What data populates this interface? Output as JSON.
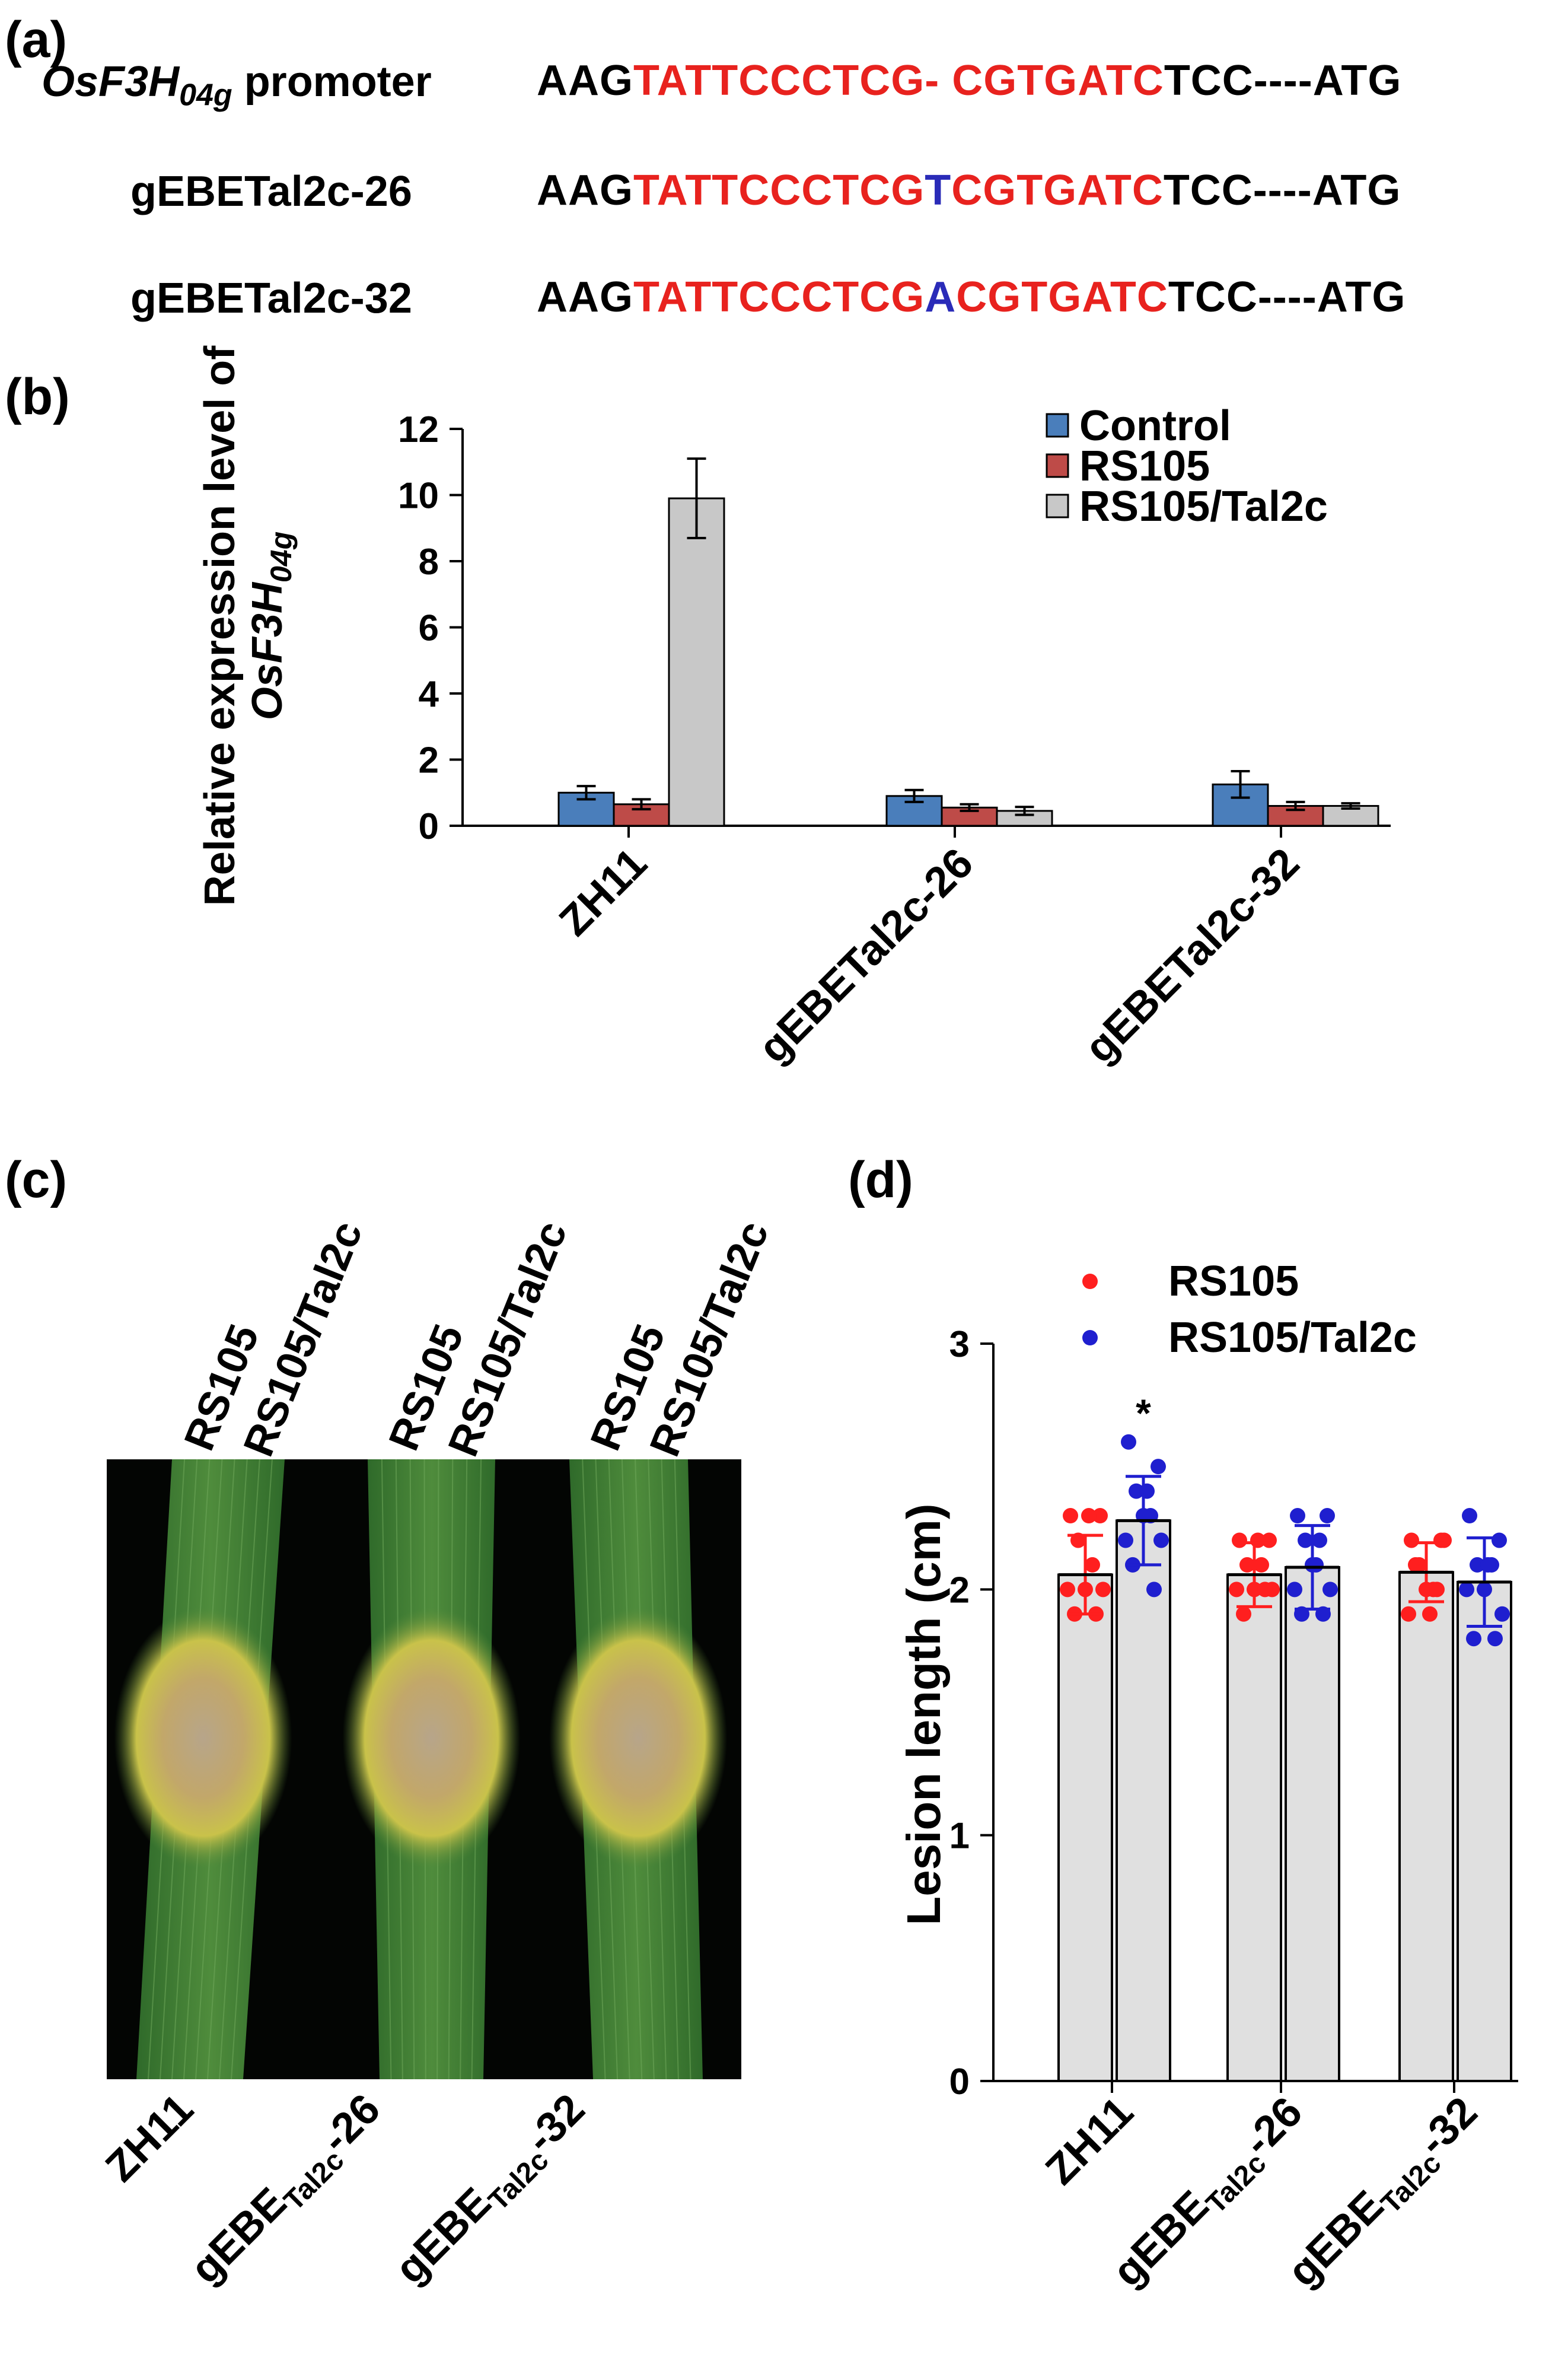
{
  "panel_a": {
    "letter": "(a)",
    "rows": [
      {
        "label": "OsF3H",
        "label_sub": "04g",
        "label_suffix": " promoter",
        "prefix": "AAG",
        "red1": "TATTCCCTCG",
        "mid": "- ",
        "mid_color": "red",
        "red2": "CGTGATC",
        "suffix": "TCC----ATG"
      },
      {
        "label": "gEBETal2c-26",
        "label_sub": "",
        "label_suffix": "",
        "prefix": "AAG",
        "red1": "TATTCCCTCG",
        "mid": "T",
        "mid_color": "blue",
        "red2": "CGTGATC",
        "suffix": "TCC----ATG"
      },
      {
        "label": "gEBETal2c-32",
        "label_sub": "",
        "label_suffix": "",
        "prefix": "AAG",
        "red1": "TATTCCCTCG",
        "mid": "A",
        "mid_color": "blue",
        "red2": "CGTGATC",
        "suffix": "TCC----ATG"
      }
    ]
  },
  "panel_b": {
    "letter": "(b)",
    "ylabel_line1": "Relative expression level of",
    "ylabel_line2_main": "OsF3H",
    "ylabel_line2_sub": "04g"
  },
  "panel_c": {
    "letter": "(c)",
    "column_labels": [
      {
        "a": "RS105",
        "b": "RS105/Tal2c"
      },
      {
        "a": "RS105",
        "b": "RS105/Tal2c"
      },
      {
        "a": "RS105",
        "b": "RS105/Tal2c"
      }
    ],
    "bottom_labels": [
      {
        "main": "ZH11",
        "sub": "",
        "suffix": ""
      },
      {
        "main": "gEBE",
        "sub": "Tal2c",
        "suffix": "-26"
      },
      {
        "main": "gEBE",
        "sub": "Tal2c",
        "suffix": "-32"
      }
    ]
  },
  "panel_d": {
    "letter": "(d)",
    "significance_mark": "*"
  },
  "colors": {
    "control": "#4a7ebb",
    "rs105_bar": "#be4b48",
    "tal2c_bar": "#c8c8c8",
    "rs105_dot": "#ff1f1f",
    "tal2c_dot": "#1f1fcf",
    "seq_red": "#e8221e",
    "seq_blue": "#2a2bb8"
  },
  "chart_data": [
    {
      "type": "bar",
      "title": "",
      "xlabel": "",
      "ylabel": "Relative expression level of OsF3H04g",
      "categories": [
        "ZH11",
        "gEBETal2c-26",
        "gEBETal2c-32"
      ],
      "series": [
        {
          "name": "Control",
          "values": [
            1.0,
            0.9,
            1.25
          ],
          "errors": [
            0.2,
            0.18,
            0.4
          ]
        },
        {
          "name": "RS105",
          "values": [
            0.65,
            0.55,
            0.6
          ],
          "errors": [
            0.15,
            0.1,
            0.12
          ]
        },
        {
          "name": "RS105/Tal2c",
          "values": [
            9.9,
            0.45,
            0.6
          ],
          "errors": [
            1.2,
            0.12,
            0.08
          ]
        }
      ],
      "ylim": [
        0,
        12
      ],
      "yticks": [
        "0",
        "2",
        "4",
        "6",
        "8",
        "10",
        "12"
      ],
      "legend_position": "top-right"
    },
    {
      "type": "bar",
      "title": "",
      "xlabel": "",
      "ylabel": "Lesion length (cm)",
      "categories": [
        "ZH11",
        "gEBETal2c-26",
        "gEBETal2c-32"
      ],
      "category_labels": [
        {
          "main": "ZH11",
          "sub": "",
          "suffix": ""
        },
        {
          "main": "gEBE",
          "sub": "Tal2c",
          "suffix": "-26"
        },
        {
          "main": "gEBE",
          "sub": "Tal2c",
          "suffix": "-32"
        }
      ],
      "series": [
        {
          "name": "RS105",
          "values": [
            2.06,
            2.06,
            2.07
          ],
          "errors": [
            0.16,
            0.13,
            0.12
          ],
          "points": [
            [
              2.3,
              2.3,
              2.2,
              2.1,
              2.0,
              2.0,
              2.0,
              1.9,
              1.9,
              2.3
            ],
            [
              2.2,
              2.2,
              2.1,
              2.1,
              2.0,
              2.0,
              2.0,
              1.9,
              2.0,
              2.2
            ],
            [
              2.2,
              2.2,
              2.1,
              2.0,
              2.0,
              1.9,
              2.2,
              2.1,
              2.0,
              1.9
            ]
          ]
        },
        {
          "name": "RS105/Tal2c",
          "values": [
            2.28,
            2.09,
            2.03
          ],
          "errors": [
            0.18,
            0.17,
            0.18
          ],
          "points": [
            [
              2.6,
              2.5,
              2.4,
              2.3,
              2.3,
              2.2,
              2.2,
              2.1,
              2.0,
              2.4
            ],
            [
              2.3,
              2.3,
              2.2,
              2.2,
              2.1,
              2.0,
              2.0,
              1.9,
              1.9,
              2.1
            ],
            [
              2.3,
              2.2,
              2.1,
              2.1,
              2.0,
              2.0,
              1.9,
              1.8,
              1.8,
              2.1
            ]
          ]
        }
      ],
      "significance": [
        {
          "category": "ZH11",
          "series": "RS105/Tal2c",
          "mark": "*"
        }
      ],
      "ylim": [
        0,
        3
      ],
      "yticks": [
        "0",
        "1",
        "2",
        "3"
      ],
      "legend_position": "top"
    }
  ]
}
